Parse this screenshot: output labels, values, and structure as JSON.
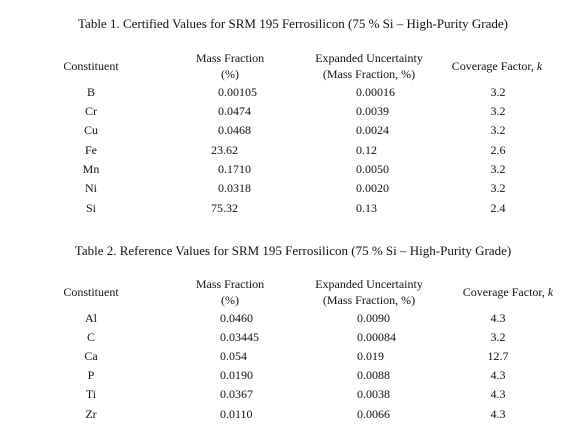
{
  "table1": {
    "caption": "Table 1.  Certified Values for SRM 195 Ferrosilicon (75 % Si – High-Purity Grade)",
    "headers": {
      "constituent": "Constituent",
      "mass_fraction_line1": "Mass Fraction",
      "mass_fraction_line2": "(%)",
      "uncertainty_line1": "Expanded Uncertainty",
      "uncertainty_line2": "(Mass Fraction, %)",
      "coverage_text": "Coverage Factor, ",
      "coverage_k": "k"
    },
    "rows": [
      {
        "constituent": "B",
        "mass_fraction": "0.00105",
        "uncertainty": "0.00016",
        "coverage": "3.2"
      },
      {
        "constituent": "Cr",
        "mass_fraction": "0.0474",
        "uncertainty": "0.0039",
        "coverage": "3.2"
      },
      {
        "constituent": "Cu",
        "mass_fraction": "0.0468",
        "uncertainty": "0.0024",
        "coverage": "3.2"
      },
      {
        "constituent": "Fe",
        "mass_fraction": "23.62",
        "uncertainty": "0.12",
        "coverage": "2.6"
      },
      {
        "constituent": "Mn",
        "mass_fraction": "0.1710",
        "uncertainty": "0.0050",
        "coverage": "3.2"
      },
      {
        "constituent": "Ni",
        "mass_fraction": "0.0318",
        "uncertainty": "0.0020",
        "coverage": "3.2"
      },
      {
        "constituent": "Si",
        "mass_fraction": "75.32",
        "uncertainty": "0.13",
        "coverage": "2.4"
      }
    ]
  },
  "table2": {
    "caption": "Table 2.  Reference Values for SRM 195 Ferrosilicon (75 % Si – High-Purity Grade)",
    "headers": {
      "constituent": "Constituent",
      "mass_fraction_line1": "Mass Fraction",
      "mass_fraction_line2": "(%)",
      "uncertainty_line1": "Expanded Uncertainty",
      "uncertainty_line2": "(Mass Fraction, %)",
      "coverage_text": "Coverage Factor, ",
      "coverage_k": "k"
    },
    "rows": [
      {
        "constituent": "Al",
        "mass_fraction": "0.0460",
        "uncertainty": "0.0090",
        "coverage": "4.3"
      },
      {
        "constituent": "C",
        "mass_fraction": "0.03445",
        "uncertainty": "0.00084",
        "coverage": "3.2"
      },
      {
        "constituent": "Ca",
        "mass_fraction": "0.054",
        "uncertainty": "0.019",
        "coverage": "12.7"
      },
      {
        "constituent": "P",
        "mass_fraction": "0.0190",
        "uncertainty": "0.0088",
        "coverage": "4.3"
      },
      {
        "constituent": "Ti",
        "mass_fraction": "0.0367",
        "uncertainty": "0.0038",
        "coverage": "4.3"
      },
      {
        "constituent": "Zr",
        "mass_fraction": "0.0110",
        "uncertainty": "0.0066",
        "coverage": "4.3"
      }
    ]
  }
}
